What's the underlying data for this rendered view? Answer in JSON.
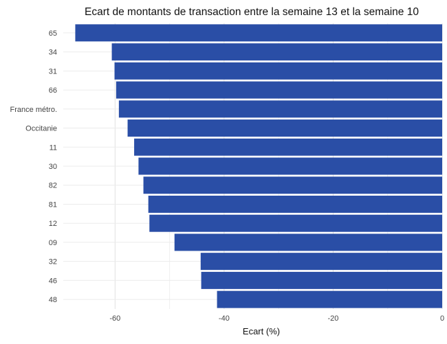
{
  "chart_data": {
    "type": "bar",
    "orientation": "horizontal",
    "title": "Ecart de montants de transaction entre la semaine 13 et la semaine 10",
    "xlabel": "Ecart (%)",
    "ylabel": "",
    "categories": [
      "65",
      "34",
      "31",
      "66",
      "France métro.",
      "Occitanie",
      "11",
      "30",
      "82",
      "81",
      "12",
      "09",
      "32",
      "46",
      "48"
    ],
    "values": [
      -67.3,
      -60.6,
      -60.1,
      -59.8,
      -59.3,
      -57.7,
      -56.5,
      -55.7,
      -54.8,
      -53.9,
      -53.7,
      -49.1,
      -44.3,
      -44.2,
      -41.3
    ],
    "xlim": [
      -69.5,
      0
    ],
    "xticks": [
      -60,
      -40,
      -20,
      0
    ],
    "xtick_labels": [
      "-60",
      "-40",
      "-20",
      "0"
    ],
    "bar_color": "#2a4ea6",
    "grid": true
  }
}
